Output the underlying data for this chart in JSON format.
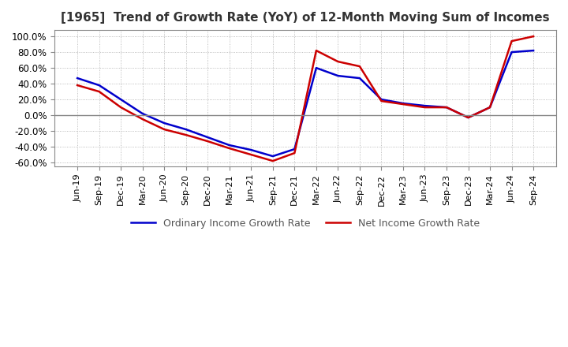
{
  "title": "[1965]  Trend of Growth Rate (YoY) of 12-Month Moving Sum of Incomes",
  "title_fontsize": 11,
  "ylim": [
    -0.65,
    1.08
  ],
  "yticks": [
    -0.6,
    -0.4,
    -0.2,
    0.0,
    0.2,
    0.4,
    0.6,
    0.8,
    1.0
  ],
  "legend_labels": [
    "Ordinary Income Growth Rate",
    "Net Income Growth Rate"
  ],
  "line_colors": [
    "#0000cc",
    "#cc0000"
  ],
  "background_color": "#ffffff",
  "grid_color": "#aaaaaa",
  "dates": [
    "Jun-19",
    "Sep-19",
    "Dec-19",
    "Mar-20",
    "Jun-20",
    "Sep-20",
    "Dec-20",
    "Mar-21",
    "Jun-21",
    "Sep-21",
    "Dec-21",
    "Mar-22",
    "Jun-22",
    "Sep-22",
    "Dec-22",
    "Mar-23",
    "Jun-23",
    "Sep-23",
    "Dec-23",
    "Mar-24",
    "Jun-24",
    "Sep-24"
  ],
  "ordinary_income": [
    0.47,
    0.38,
    0.2,
    0.02,
    -0.1,
    -0.18,
    -0.28,
    -0.38,
    -0.44,
    -0.52,
    -0.43,
    0.6,
    0.5,
    0.47,
    0.2,
    0.15,
    0.12,
    0.1,
    -0.03,
    0.1,
    0.8,
    0.82
  ],
  "net_income": [
    0.38,
    0.3,
    0.1,
    -0.05,
    -0.18,
    -0.25,
    -0.33,
    -0.42,
    -0.5,
    -0.58,
    -0.48,
    0.82,
    0.68,
    0.62,
    0.18,
    0.14,
    0.1,
    0.1,
    -0.03,
    0.1,
    0.94,
    1.0
  ]
}
